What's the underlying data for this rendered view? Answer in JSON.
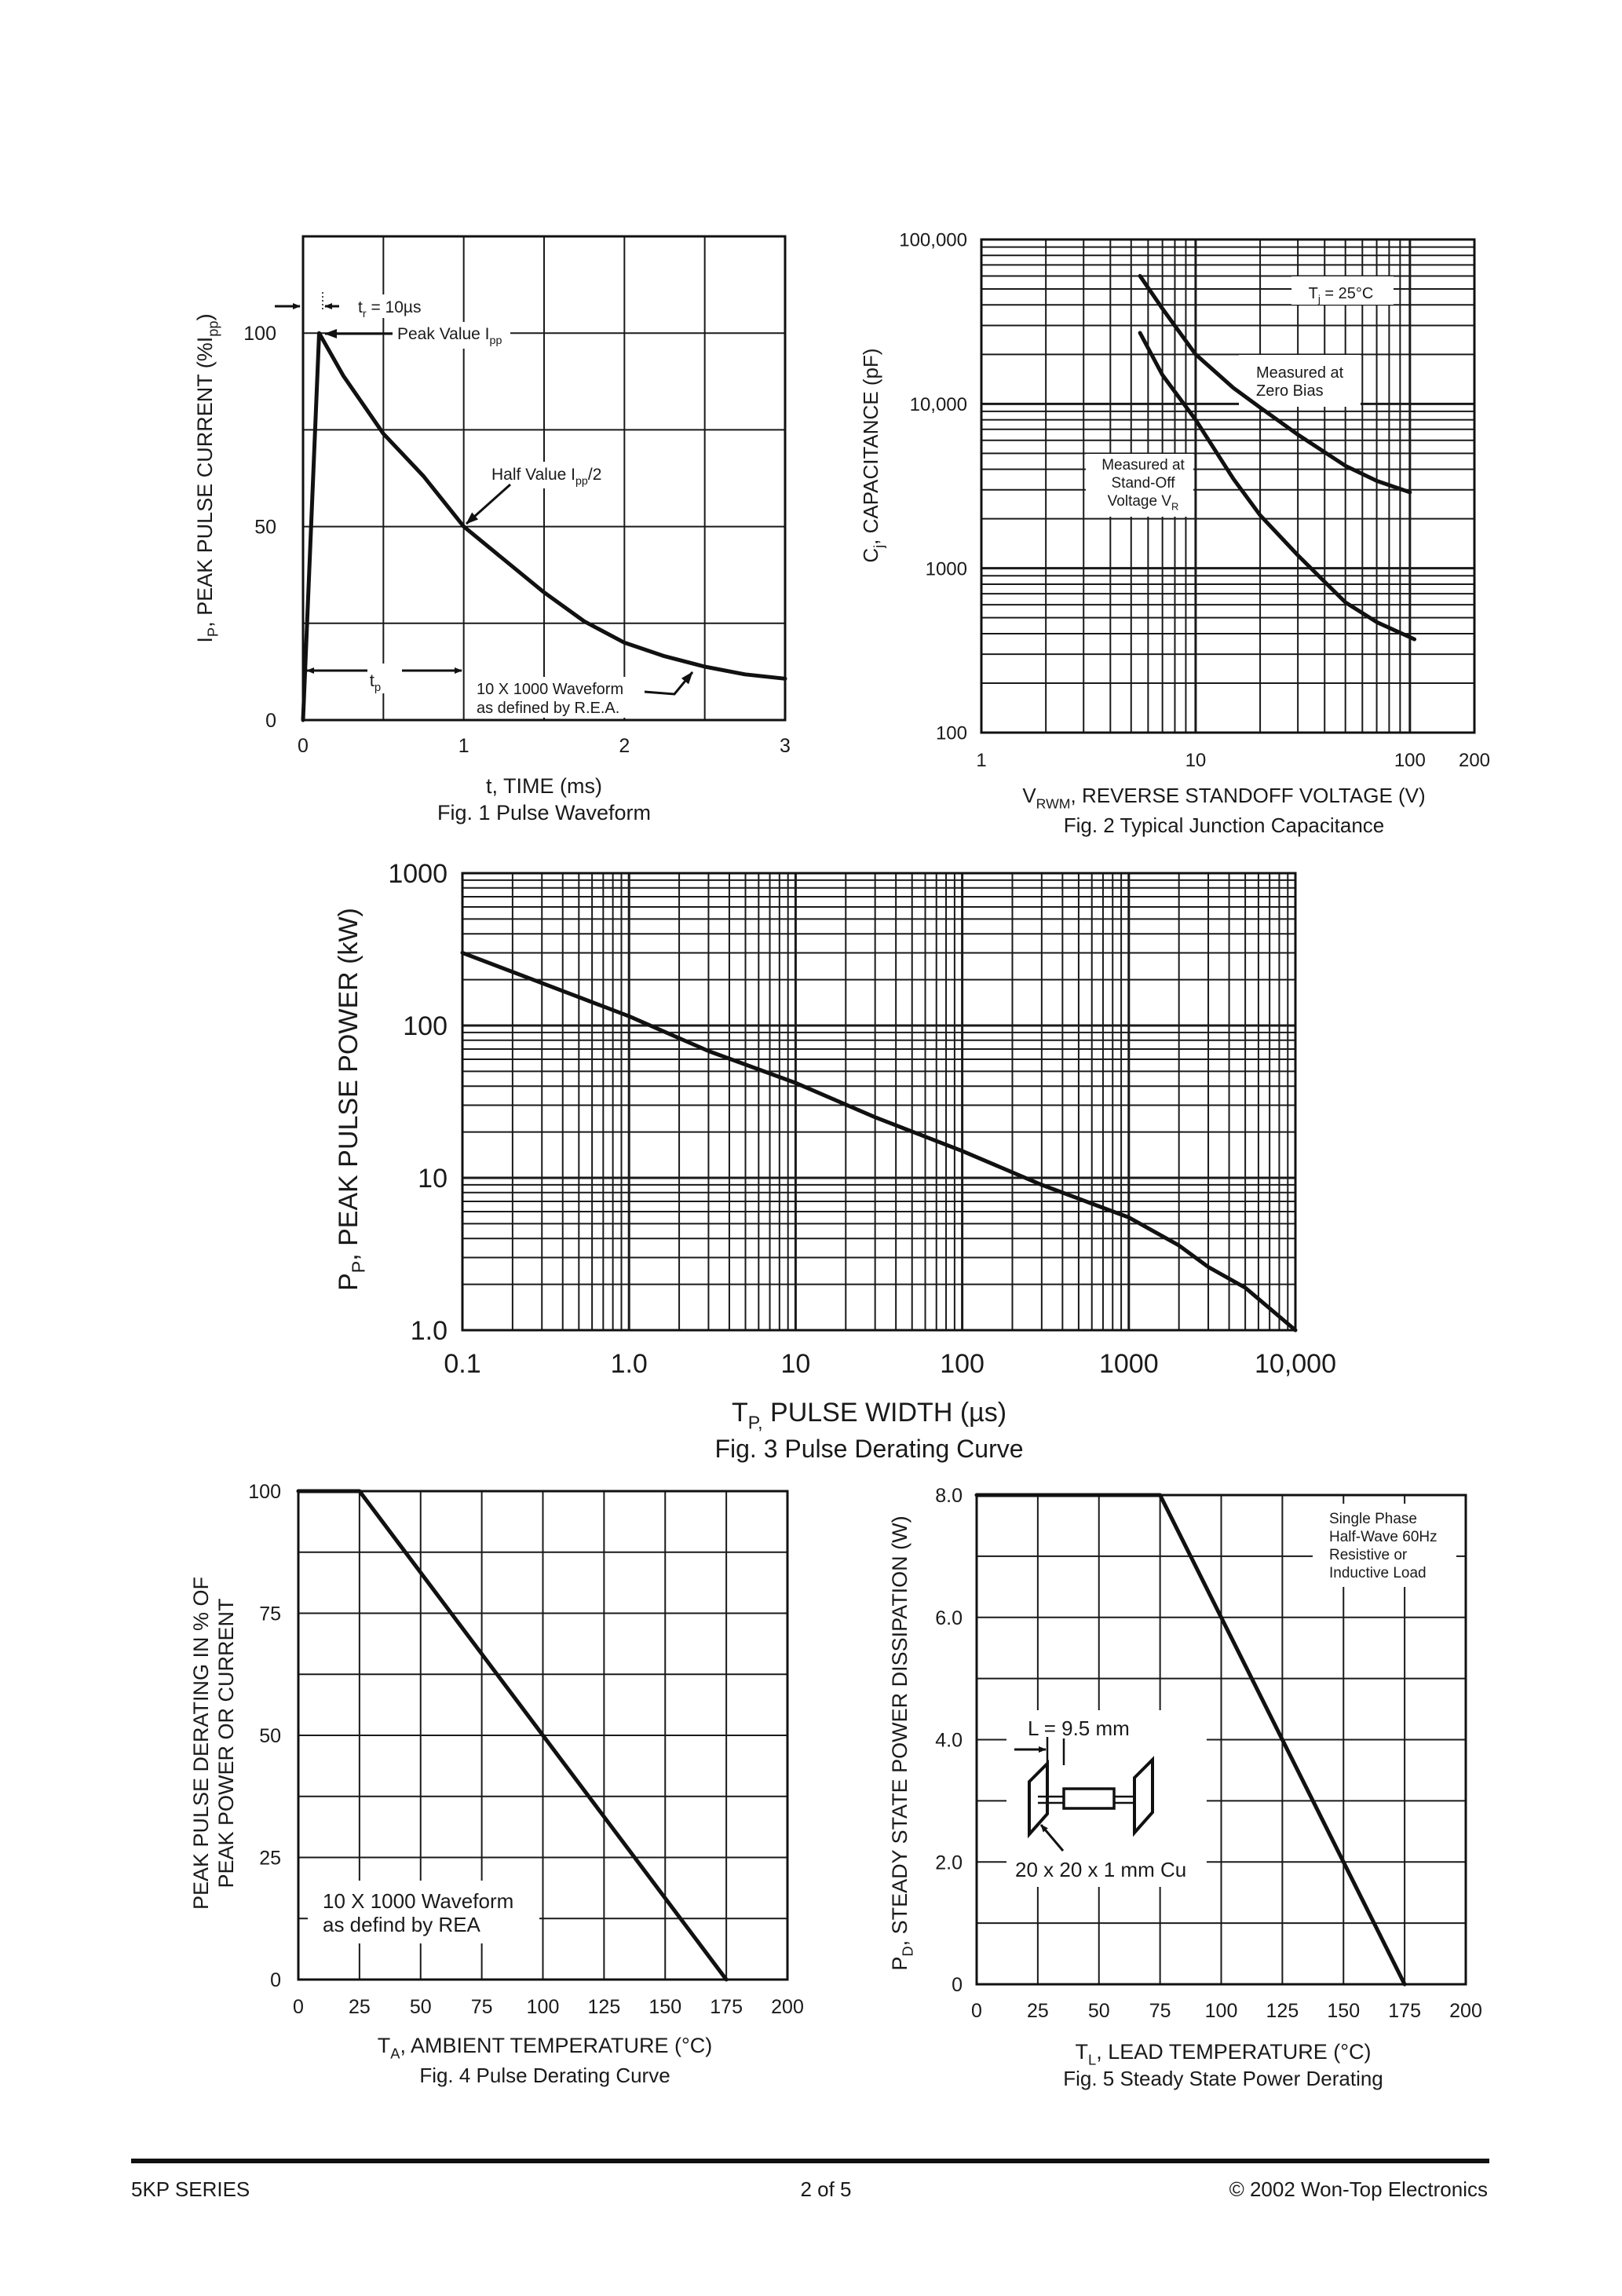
{
  "footer": {
    "series": "5KP SERIES",
    "page": "2  of  5",
    "copyright": "© 2002 Won-Top Electronics"
  },
  "chart_data": [
    {
      "type": "line",
      "title": "Fig. 1  Pulse Waveform",
      "xlabel": [
        {
          "t": "t, TIME (ms)"
        }
      ],
      "ylabel": [
        [
          {
            "t": "I"
          },
          {
            "t": "P",
            "sub": true
          },
          {
            "t": ", PEAK PULSE CURRENT (%I"
          },
          {
            "t": "pp",
            "sub": true
          },
          {
            "t": ")"
          }
        ]
      ],
      "xscale": "linear",
      "yscale": "linear",
      "xlim": [
        0,
        3
      ],
      "ylim": [
        0,
        125
      ],
      "grid": true,
      "x_grid_step": 0.5,
      "y_grid_step": 25,
      "xticks": [
        0,
        1,
        2,
        3
      ],
      "xtick_labels": [
        "0",
        "1",
        "2",
        "3"
      ],
      "yticks": [
        0,
        50,
        100
      ],
      "ytick_labels": [
        "0",
        "50",
        "100"
      ],
      "series": [
        {
          "x": [
            0,
            0.1,
            0.25,
            0.5,
            0.75,
            1,
            1.25,
            1.5,
            1.75,
            2,
            2.25,
            2.5,
            2.75,
            3
          ],
          "y": [
            0,
            100,
            89,
            74,
            63,
            50,
            41.5,
            33,
            25.5,
            20,
            16.5,
            13.8,
            11.8,
            10.7
          ]
        }
      ],
      "annotations": [
        [
          [
            {
              "t": "t"
            },
            {
              "t": "r",
              "sub": true
            },
            {
              "t": " = 10µs"
            }
          ]
        ],
        [
          [
            {
              "t": "Peak Value I"
            },
            {
              "t": "pp",
              "sub": true
            }
          ]
        ],
        [
          [
            {
              "t": "Half Value I"
            },
            {
              "t": "pp",
              "sub": true
            },
            {
              "t": "/2"
            }
          ]
        ],
        [
          [
            {
              "t": "t"
            },
            {
              "t": "p",
              "sub": true
            }
          ]
        ],
        [
          [
            {
              "t": "10 X 1000 Waveform"
            }
          ],
          [
            {
              "t": "as defined by R.E.A."
            }
          ]
        ]
      ]
    },
    {
      "type": "line",
      "title": "Fig. 2  Typical Junction Capacitance",
      "xlabel": [
        {
          "t": "V"
        },
        {
          "t": "RWM",
          "sub": true
        },
        {
          "t": ", REVERSE STANDOFF VOLTAGE (V)"
        }
      ],
      "ylabel": [
        [
          {
            "t": "C"
          },
          {
            "t": "j",
            "sub": true
          },
          {
            "t": ", CAPACITANCE (pF)"
          }
        ]
      ],
      "xscale": "log",
      "yscale": "log",
      "xlim": [
        1,
        200
      ],
      "ylim": [
        100,
        100000
      ],
      "grid": true,
      "xticks": [
        1,
        10,
        100,
        200
      ],
      "xtick_labels": [
        "1",
        "10",
        "100",
        "200"
      ],
      "yticks": [
        100,
        1000,
        10000,
        100000
      ],
      "ytick_labels": [
        "100",
        "1000",
        "10,000",
        "100,000"
      ],
      "series": [
        {
          "x": [
            5.5,
            7,
            10,
            15,
            20,
            30,
            50,
            70,
            100
          ],
          "y": [
            60000,
            38000,
            20000,
            12500,
            9500,
            6500,
            4200,
            3400,
            2900
          ]
        },
        {
          "x": [
            5.5,
            7,
            10,
            15,
            20,
            30,
            50,
            70,
            105
          ],
          "y": [
            27000,
            15000,
            8000,
            3500,
            2100,
            1200,
            620,
            470,
            370
          ]
        }
      ],
      "annotations": [
        [
          [
            {
              "t": "T"
            },
            {
              "t": "j",
              "sub": true
            },
            {
              "t": " = 25°C"
            }
          ]
        ],
        [
          [
            {
              "t": "Measured at"
            }
          ],
          [
            {
              "t": "Zero Bias"
            }
          ]
        ],
        [
          [
            {
              "t": "Measured at"
            }
          ],
          [
            {
              "t": "Stand-Off"
            }
          ],
          [
            {
              "t": "Voltage V"
            },
            {
              "t": "R",
              "sub": true
            }
          ]
        ]
      ]
    },
    {
      "type": "line",
      "title": "Fig. 3  Pulse Derating Curve",
      "xlabel": [
        {
          "t": "T"
        },
        {
          "t": "P,",
          "sub": true
        },
        {
          "t": " PULSE WIDTH (µs)"
        }
      ],
      "ylabel": [
        [
          {
            "t": "P"
          },
          {
            "t": "P",
            "sub": true
          },
          {
            "t": ", PEAK PULSE POWER (kW)"
          }
        ]
      ],
      "xscale": "log",
      "yscale": "log",
      "xlim": [
        0.1,
        10000
      ],
      "ylim": [
        1,
        1000
      ],
      "grid": true,
      "xticks": [
        0.1,
        1,
        10,
        100,
        1000,
        10000
      ],
      "xtick_labels": [
        "0.1",
        "1.0",
        "10",
        "100",
        "1000",
        "10,000"
      ],
      "yticks": [
        1,
        10,
        100,
        1000
      ],
      "ytick_labels": [
        "1.0",
        "10",
        "100",
        "1000"
      ],
      "series": [
        {
          "x": [
            0.1,
            0.3,
            1,
            3,
            10,
            30,
            100,
            300,
            1000,
            2000,
            3000,
            5000,
            10000
          ],
          "y": [
            300,
            190,
            115,
            68,
            42,
            25,
            15,
            9,
            5.5,
            3.6,
            2.6,
            1.9,
            1.0
          ]
        }
      ],
      "annotations": []
    },
    {
      "type": "line",
      "title": "Fig. 4  Pulse Derating Curve",
      "xlabel": [
        {
          "t": "T"
        },
        {
          "t": "A",
          "sub": true
        },
        {
          "t": ", AMBIENT TEMPERATURE (°C)"
        }
      ],
      "ylabel": [
        [
          {
            "t": "PEAK PULSE DERATING IN % OF"
          }
        ],
        [
          {
            "t": "PEAK POWER OR CURRENT"
          }
        ]
      ],
      "xscale": "linear",
      "yscale": "linear",
      "xlim": [
        0,
        200
      ],
      "ylim": [
        0,
        100
      ],
      "grid": true,
      "x_grid_step": 25,
      "y_grid_step": 12.5,
      "xticks": [
        0,
        25,
        50,
        75,
        100,
        125,
        150,
        175,
        200
      ],
      "xtick_labels": [
        "0",
        "25",
        "50",
        "75",
        "100",
        "125",
        "150",
        "175",
        "200"
      ],
      "yticks": [
        0,
        25,
        50,
        75,
        100
      ],
      "ytick_labels": [
        "0",
        "25",
        "50",
        "75",
        "100"
      ],
      "series": [
        {
          "x": [
            0,
            25,
            175
          ],
          "y": [
            100,
            100,
            0
          ]
        }
      ],
      "annotations": [
        [
          [
            {
              "t": "10 X 1000 Waveform"
            }
          ],
          [
            {
              "t": "as defind by REA"
            }
          ]
        ]
      ]
    },
    {
      "type": "line",
      "title": "Fig. 5  Steady State Power Derating",
      "xlabel": [
        {
          "t": "T"
        },
        {
          "t": "L",
          "sub": true
        },
        {
          "t": ", LEAD TEMPERATURE (°C)"
        }
      ],
      "ylabel": [
        [
          {
            "t": "P"
          },
          {
            "t": "D",
            "sub": true
          },
          {
            "t": ", STEADY STATE POWER DISSIPATION (W)"
          }
        ]
      ],
      "xscale": "linear",
      "yscale": "linear",
      "xlim": [
        0,
        200
      ],
      "ylim": [
        0,
        8
      ],
      "grid": true,
      "x_grid_step": 25,
      "y_grid_step": 1,
      "xticks": [
        0,
        25,
        50,
        75,
        100,
        125,
        150,
        175,
        200
      ],
      "xtick_labels": [
        "0",
        "25",
        "50",
        "75",
        "100",
        "125",
        "150",
        "175",
        "200"
      ],
      "yticks": [
        0,
        2,
        4,
        6,
        8
      ],
      "ytick_labels": [
        "0",
        "2.0",
        "4.0",
        "6.0",
        "8.0"
      ],
      "series": [
        {
          "x": [
            0,
            75,
            175
          ],
          "y": [
            8,
            8,
            0
          ]
        }
      ],
      "annotations": [
        [
          [
            {
              "t": "Single Phase"
            }
          ],
          [
            {
              "t": "Half-Wave 60Hz"
            }
          ],
          [
            {
              "t": "Resistive or"
            }
          ],
          [
            {
              "t": "Inductive Load"
            }
          ]
        ],
        [
          [
            {
              "t": "L = 9.5 mm"
            }
          ]
        ],
        [
          [
            {
              "t": "20 x 20 x 1 mm Cu"
            }
          ]
        ]
      ]
    }
  ]
}
